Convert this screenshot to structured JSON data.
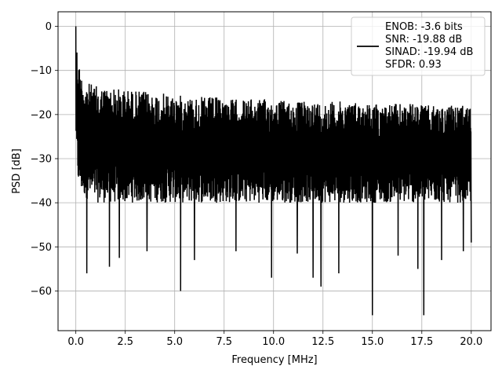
{
  "chart_data": {
    "type": "line",
    "title": "",
    "xlabel": "Frequency [MHz]",
    "ylabel": "PSD [dB]",
    "xlim": [
      -0.9,
      21.0
    ],
    "ylim": [
      -69.0,
      3.3
    ],
    "xticks": [
      0.0,
      2.5,
      5.0,
      7.5,
      10.0,
      12.5,
      15.0,
      17.5,
      20.0
    ],
    "xtick_labels": [
      "0.0",
      "2.5",
      "5.0",
      "7.5",
      "10.0",
      "12.5",
      "15.0",
      "17.5",
      "20.0"
    ],
    "yticks": [
      0,
      -10,
      -20,
      -30,
      -40,
      -50,
      -60
    ],
    "ytick_labels": [
      "0",
      "−10",
      "−20",
      "−30",
      "−40",
      "−50",
      "−60"
    ],
    "grid": true,
    "legend_placement": "top-right",
    "series": [
      {
        "name": "ENOB: -3.6 bits\nSNR: -19.88 dB\nSINAD: -19.94 dB\nSFDR: 0.93",
        "color": "#000000",
        "x_range": [
          0.0,
          20.0
        ],
        "envelope": {
          "x": [
            0.0,
            0.05,
            0.15,
            0.3,
            0.5,
            1.0,
            2.0,
            3.0,
            4.0,
            5.0,
            6.0,
            7.0,
            8.0,
            9.0,
            10.0,
            11.0,
            12.0,
            13.0,
            14.0,
            15.0,
            16.0,
            17.0,
            18.0,
            19.0,
            20.0
          ],
          "upper": [
            0.0,
            -4.0,
            -8.0,
            -11.0,
            -12.5,
            -13.5,
            -14.0,
            -14.5,
            -15.0,
            -15.5,
            -16.0,
            -16.0,
            -16.5,
            -16.5,
            -16.5,
            -17.0,
            -17.0,
            -17.0,
            -17.0,
            -17.5,
            -17.5,
            -17.5,
            -18.0,
            -18.0,
            -18.0
          ],
          "lower": [
            -25.0,
            -33.0,
            -37.0,
            -38.0,
            -39.0,
            -40.0,
            -40.0,
            -40.0,
            -40.0,
            -40.0,
            -40.0,
            -40.0,
            -40.0,
            -40.0,
            -40.0,
            -40.0,
            -40.0,
            -40.0,
            -40.0,
            -40.0,
            -40.0,
            -40.0,
            -40.0,
            -40.0,
            -40.0
          ]
        },
        "deep_nulls": [
          {
            "x": 0.55,
            "y": -56.0
          },
          {
            "x": 1.7,
            "y": -54.5
          },
          {
            "x": 2.2,
            "y": -52.5
          },
          {
            "x": 3.6,
            "y": -51.0
          },
          {
            "x": 5.3,
            "y": -60.0
          },
          {
            "x": 6.0,
            "y": -53.0
          },
          {
            "x": 8.1,
            "y": -51.0
          },
          {
            "x": 9.9,
            "y": -57.0
          },
          {
            "x": 11.2,
            "y": -51.5
          },
          {
            "x": 12.0,
            "y": -57.0
          },
          {
            "x": 12.4,
            "y": -59.0
          },
          {
            "x": 13.3,
            "y": -56.0
          },
          {
            "x": 15.0,
            "y": -65.5
          },
          {
            "x": 16.3,
            "y": -52.0
          },
          {
            "x": 17.3,
            "y": -55.0
          },
          {
            "x": 17.6,
            "y": -65.5
          },
          {
            "x": 18.5,
            "y": -53.0
          },
          {
            "x": 19.6,
            "y": -51.0
          },
          {
            "x": 20.0,
            "y": -49.0
          }
        ]
      }
    ]
  }
}
